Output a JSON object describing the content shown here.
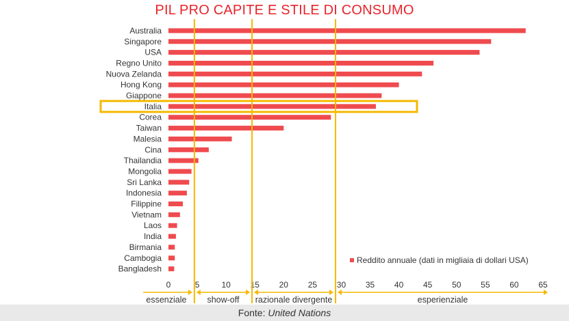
{
  "chart_data": {
    "type": "bar",
    "orientation": "horizontal",
    "title": "PIL PRO CAPITE E STILE DI CONSUMO",
    "categories": [
      "Australia",
      "Singapore",
      "USA",
      "Regno Unito",
      "Nuova Zelanda",
      "Hong Kong",
      "Giappone",
      "Italia",
      "Corea",
      "Taiwan",
      "Malesia",
      "Cina",
      "Thailandia",
      "Mongolia",
      "Sri Lanka",
      "Indonesia",
      "Filippine",
      "Vietnam",
      "Laos",
      "India",
      "Birmania",
      "Cambogia",
      "Bangladesh"
    ],
    "series": [
      {
        "name": "Reddito annuale (dati in migliaia di dollari USA)",
        "values": [
          62,
          56,
          54,
          46,
          44,
          40,
          37,
          36,
          28.2,
          20,
          11,
          7,
          5.2,
          4,
          3.6,
          3.2,
          2.5,
          2,
          1.5,
          1.3,
          1.1,
          1.1,
          1
        ]
      }
    ],
    "xlim": [
      0,
      65
    ],
    "xticks": [
      0,
      5,
      10,
      15,
      20,
      25,
      30,
      35,
      40,
      45,
      50,
      55,
      60,
      65
    ],
    "xlabel": "",
    "ylabel": "",
    "legend_position": "bottom-right",
    "grid": false,
    "bar_color": "#ef4b4f",
    "highlight": {
      "category": "Italia",
      "color": "#f5b800"
    },
    "thresholds": [
      4.5,
      14.5,
      29
    ],
    "threshold_color": "#f5b800",
    "segments": [
      {
        "label": "essenziale",
        "from": 0,
        "to": 4.5
      },
      {
        "label": "show-off",
        "from": 4.5,
        "to": 14.5
      },
      {
        "label": "razionale divergente",
        "from": 14.5,
        "to": 29
      },
      {
        "label": "esperienziale",
        "from": 29,
        "to": 65
      }
    ]
  },
  "footer": {
    "prefix": "Fonte: ",
    "source": "United Nations"
  }
}
